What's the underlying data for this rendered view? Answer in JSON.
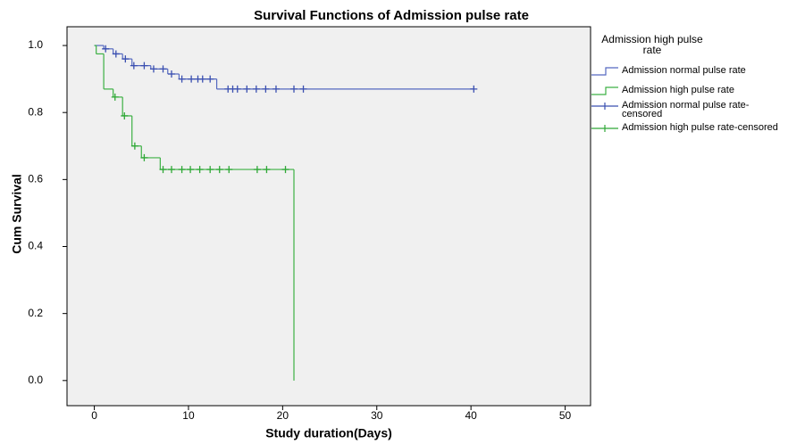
{
  "chart_data": {
    "type": "survival",
    "title": "Survival Functions of Admission pulse rate",
    "x_label": "Study duration(Days)",
    "y_label": "Cum Survival",
    "legend_title": "Admission high pulse rate",
    "legend": "right",
    "xlim": [
      -2.9,
      52.7
    ],
    "xticks": [
      0,
      10,
      20,
      30,
      40,
      50
    ],
    "ylim": [
      -0.075,
      1.056
    ],
    "yticks": [
      {
        "value": 0,
        "label": "0.0"
      },
      0.2,
      0.4,
      0.6,
      0.8,
      {
        "value": 1,
        "label": "1.0"
      }
    ],
    "series": [
      {
        "name": "Admission normal pulse rate",
        "color": "#5468c0",
        "marker": "step",
        "x": [
          0,
          1,
          2,
          3,
          4,
          6,
          7.8,
          9,
          13,
          40.3
        ],
        "values": [
          1,
          0.99,
          0.975,
          0.96,
          0.94,
          0.93,
          0.915,
          0.9,
          0.87,
          0.87
        ]
      },
      {
        "name": "Admission high pulse rate",
        "color": "#3cb043",
        "marker": "step",
        "x": [
          0,
          0.2,
          1,
          2,
          3,
          4,
          5,
          7,
          21.2
        ],
        "values": [
          1,
          0.975,
          0.87,
          0.846,
          0.79,
          0.7,
          0.665,
          0.63,
          0
        ]
      },
      {
        "name": "Admission normal pulse rate-censored",
        "color": "#3a4fb0",
        "marker": "plus",
        "x": [
          1.2,
          2.3,
          3.3,
          4.2,
          5.3,
          6.3,
          7.3,
          8.2,
          9.3,
          10.3,
          11,
          11.5,
          12.3,
          14.2,
          14.7,
          15.2,
          16.2,
          17.2,
          18.2,
          19.3,
          21.2,
          22.2,
          40.3
        ],
        "values": [
          0.99,
          0.975,
          0.96,
          0.94,
          0.94,
          0.93,
          0.93,
          0.915,
          0.9,
          0.9,
          0.9,
          0.9,
          0.9,
          0.87,
          0.87,
          0.87,
          0.87,
          0.87,
          0.87,
          0.87,
          0.87,
          0.87,
          0.87
        ]
      },
      {
        "name": "Admission high pulse rate-censored",
        "color": "#2ea836",
        "marker": "plus",
        "x": [
          2.2,
          3.2,
          4.3,
          5.3,
          7.3,
          8.2,
          9.3,
          10.2,
          11.2,
          12.3,
          13.3,
          14.3,
          17.3,
          18.3,
          20.3
        ],
        "values": [
          0.846,
          0.79,
          0.7,
          0.665,
          0.63,
          0.63,
          0.63,
          0.63,
          0.63,
          0.63,
          0.63,
          0.63,
          0.63,
          0.63,
          0.63
        ]
      }
    ]
  }
}
